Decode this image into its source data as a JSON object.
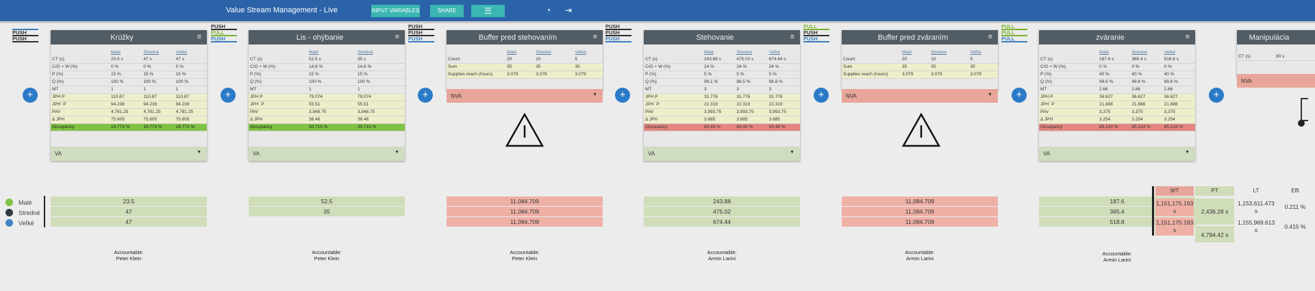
{
  "topbar": {
    "title": "Value Stream Management - Live",
    "input_btn": "INPUT VARIABLES",
    "share_btn": "SHARE",
    "menu_icon": "hamburger-icon",
    "user_icon": "user-icon",
    "logout_icon": "logout-icon",
    "color": "#2a63a8"
  },
  "modes": [
    [
      "PUSH",
      "PUSH"
    ],
    [
      "PUSH",
      "PULL",
      "PUSH"
    ],
    [
      "PUSH",
      "PUSH",
      "PUSH"
    ],
    [
      "PUSH",
      "PUSH",
      "PUSH"
    ],
    [
      "PULL",
      "PUSH",
      "PUSH"
    ],
    [
      "PULL",
      "PULL",
      "PULL"
    ]
  ],
  "cards": [
    {
      "title": "Krúžky",
      "cols": [
        "Malé",
        "Stredné",
        "Veľké"
      ],
      "rows": [
        [
          "CT (s)",
          "23.5 s",
          "47 s",
          "47 s"
        ],
        [
          "C/O + W (%)",
          "0 %",
          "0 %",
          "0 %"
        ],
        [
          "P (%)",
          "15 %",
          "15 %",
          "15 %"
        ],
        [
          "Q (%)",
          "100 %",
          "100 %",
          "100 %"
        ],
        [
          "MT",
          "1",
          "1",
          "1"
        ],
        [
          "JPH P",
          "110.87",
          "110.87",
          "110.87"
        ],
        [
          "JPH´ P",
          "94.239",
          "94.239",
          "94.239"
        ],
        [
          "PAV",
          "4,781.25",
          "4,781.25",
          "4,781.25"
        ],
        [
          "Δ JPH",
          "75.605",
          "75.605",
          "75.605"
        ],
        [
          "Occupancy",
          "19.773 %",
          "19.773 %",
          "19.773 %"
        ]
      ],
      "drop": "VA"
    },
    {
      "title": "Lis - ohýbanie",
      "cols": [
        "Malé",
        "Stredné"
      ],
      "rows": [
        [
          "CT (s)",
          "52.5 s",
          "35 s"
        ],
        [
          "C/O + W (%)",
          "14.8 %",
          "14.8 %"
        ],
        [
          "P (%)",
          "15 %",
          "15 %"
        ],
        [
          "Q (%)",
          "100 %",
          "100 %"
        ],
        [
          "MT",
          "1",
          "1"
        ],
        [
          "JPH P",
          "79.074",
          "79.074"
        ],
        [
          "JPH´ P",
          "55.51",
          "55.51"
        ],
        [
          "PAV",
          "3,948.75",
          "3,948.75"
        ],
        [
          "Δ JPH",
          "38.46",
          "38.46"
        ],
        [
          "Occupancy",
          "30.715 %",
          "30.715 %"
        ]
      ],
      "drop": "VA"
    },
    {
      "title": "Buffer pred stehovaním",
      "cols": [
        "Malé",
        "Stredné",
        "Veľké"
      ],
      "rows": [
        [
          "Count",
          "20",
          "10",
          "5"
        ],
        [
          "Sum",
          "35",
          "35",
          "35"
        ],
        [
          "Supplies reach (hours)",
          "3.079",
          "3.079",
          "3.079"
        ]
      ],
      "drop": "NVA"
    },
    {
      "title": "Stehovanie",
      "cols": [
        "Malé",
        "Stredné",
        "Veľké"
      ],
      "rows": [
        [
          "CT (s)",
          "243.88 s",
          "475.02 s",
          "674.44 s"
        ],
        [
          "C/O + W (%)",
          "24 %",
          "24 %",
          "24 %"
        ],
        [
          "P (%)",
          "5 %",
          "5 %",
          "5 %"
        ],
        [
          "Q (%)",
          "99.1 %",
          "98.5 %",
          "98.8 %"
        ],
        [
          "MT",
          "3",
          "3",
          "3"
        ],
        [
          "JPH P",
          "31.776",
          "31.776",
          "31.776"
        ],
        [
          "JPH´ P",
          "22.319",
          "22.319",
          "22.319"
        ],
        [
          "PAV",
          "3,993.75",
          "3,993.75",
          "3,993.75"
        ],
        [
          "Δ JPH",
          "3.685",
          "3.685",
          "3.685"
        ],
        [
          "Occupancy",
          "83.49 %",
          "83.49 %",
          "83.49 %"
        ]
      ],
      "drop": "VA"
    },
    {
      "title": "Buffer pred zváraním",
      "cols": [
        "Malé",
        "Stredné",
        "Veľké"
      ],
      "rows": [
        [
          "Count",
          "20",
          "10",
          "5"
        ],
        [
          "Sum",
          "35",
          "35",
          "35"
        ],
        [
          "Supplies reach (hours)",
          "3.079",
          "3.079",
          "3.079"
        ]
      ],
      "drop": "NVA"
    },
    {
      "title": "zváranie",
      "cols": [
        "Malé",
        "Stredné",
        "Veľké"
      ],
      "rows": [
        [
          "CT (s)",
          "187.6 s",
          "365.4 s",
          "518.8 s"
        ],
        [
          "C/O + W (%)",
          "0 %",
          "0 %",
          "0 %"
        ],
        [
          "P (%)",
          "40 %",
          "40 %",
          "40 %"
        ],
        [
          "Q (%)",
          "99.6 %",
          "99.6 %",
          "99.6 %"
        ],
        [
          "MT",
          "2.66",
          "2.66",
          "2.66"
        ],
        [
          "JPH P",
          "36.627",
          "36.627",
          "36.627"
        ],
        [
          "JPH´ P",
          "21.888",
          "21.888",
          "21.888"
        ],
        [
          "PAV",
          "3,375",
          "3,375",
          "3,375"
        ],
        [
          "Δ JPH",
          "3.254",
          "3.254",
          "3.254"
        ],
        [
          "Occupancy",
          "85.133 %",
          "85.133 %",
          "85.133 %"
        ]
      ],
      "drop": "VA"
    },
    {
      "title": "Manipulácia",
      "cols": [],
      "rows": [
        [
          "CT (s)",
          "80 s"
        ]
      ],
      "drop": "NVA"
    }
  ],
  "legend": [
    {
      "label": "Malé",
      "color": "#7dc243"
    },
    {
      "label": "Stredné",
      "color": "#2e3a44"
    },
    {
      "label": "Veľké",
      "color": "#3f85c6"
    }
  ],
  "summary": [
    {
      "type": "g",
      "vals": [
        "23.5",
        "47",
        "47"
      ]
    },
    {
      "type": "g",
      "vals": [
        "52.5",
        "35",
        ""
      ]
    },
    {
      "type": "r",
      "vals": [
        "11,084.709",
        "11,084.709",
        "11,084.709"
      ]
    },
    {
      "type": "g",
      "vals": [
        "243.88",
        "475.02",
        "674.44"
      ]
    },
    {
      "type": "r",
      "vals": [
        "11,084.709",
        "11,084.709",
        "11,084.709"
      ]
    },
    {
      "type": "g",
      "vals": [
        "187.6",
        "365.4",
        "518.8"
      ]
    }
  ],
  "accountable": [
    {
      "label": "Accountable:",
      "name": "Peter Klein"
    },
    {
      "label": "Accountable:",
      "name": "Peter Klein"
    },
    {
      "label": "Accountable:",
      "name": "Peter Klein"
    },
    {
      "label": "Accountable:",
      "name": "Armin Larini"
    },
    {
      "label": "Accountable:",
      "name": "Armin Larini"
    },
    {
      "label": "Accountable:",
      "name": "Armin Larini"
    }
  ],
  "results": {
    "headers": [
      "WT",
      "PT",
      "LT",
      "Effi"
    ],
    "wt": [
      "1,151,175.193 s",
      "1,151,175.193 s"
    ],
    "pt": [
      "2,436.28 s",
      "4,794.42 s"
    ],
    "lt": [
      "1,153,611.473 s",
      "1,155,969.613 s"
    ],
    "effi": [
      "0.211 %",
      "0.415 %"
    ]
  }
}
